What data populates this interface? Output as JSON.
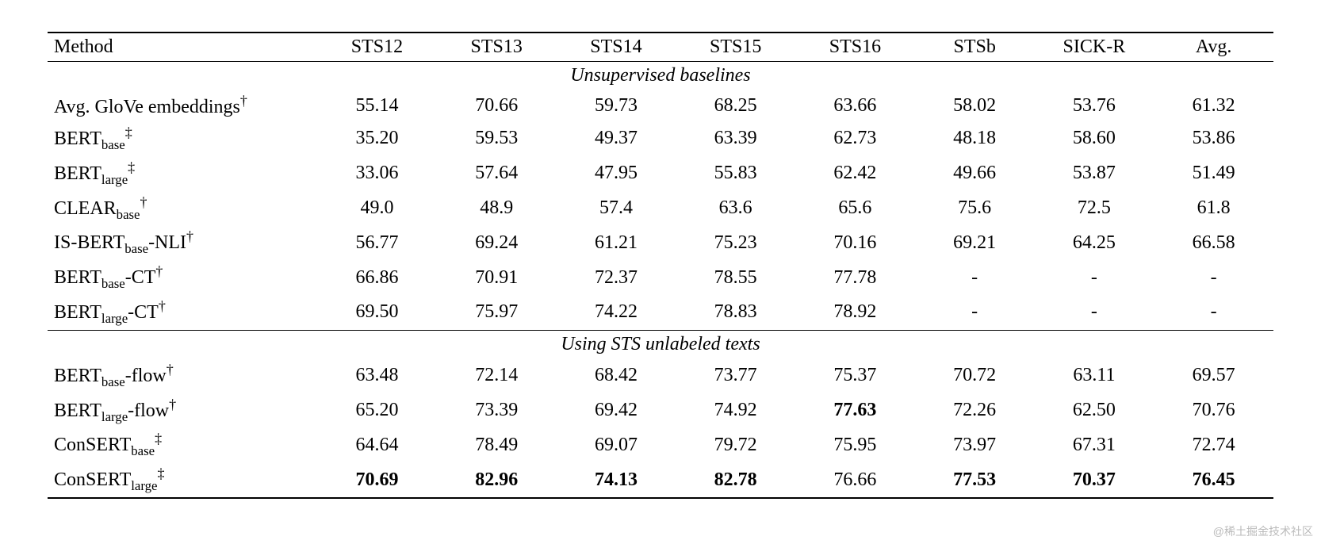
{
  "table": {
    "columns": [
      "Method",
      "STS12",
      "STS13",
      "STS14",
      "STS15",
      "STS16",
      "STSb",
      "SICK-R",
      "Avg."
    ],
    "col_widths_pct": [
      22,
      9.75,
      9.75,
      9.75,
      9.75,
      9.75,
      9.75,
      9.75,
      9.75
    ],
    "font_family": "Times New Roman",
    "font_size_pt": 24,
    "sections": [
      {
        "title": "Unsupervised baselines",
        "rows": [
          {
            "method_html": "Avg. GloVe embeddings<sup>†</sup>",
            "vals": [
              "55.14",
              "70.66",
              "59.73",
              "68.25",
              "63.66",
              "58.02",
              "53.76",
              "61.32"
            ],
            "bold": [
              0,
              0,
              0,
              0,
              0,
              0,
              0,
              0
            ]
          },
          {
            "method_html": "BERT<sub>base</sub><sup>‡</sup>",
            "vals": [
              "35.20",
              "59.53",
              "49.37",
              "63.39",
              "62.73",
              "48.18",
              "58.60",
              "53.86"
            ],
            "bold": [
              0,
              0,
              0,
              0,
              0,
              0,
              0,
              0
            ]
          },
          {
            "method_html": "BERT<sub>large</sub><sup>‡</sup>",
            "vals": [
              "33.06",
              "57.64",
              "47.95",
              "55.83",
              "62.42",
              "49.66",
              "53.87",
              "51.49"
            ],
            "bold": [
              0,
              0,
              0,
              0,
              0,
              0,
              0,
              0
            ]
          },
          {
            "method_html": "CLEAR<sub>base</sub><sup>†</sup>",
            "vals": [
              "49.0",
              "48.9",
              "57.4",
              "63.6",
              "65.6",
              "75.6",
              "72.5",
              "61.8"
            ],
            "bold": [
              0,
              0,
              0,
              0,
              0,
              0,
              0,
              0
            ]
          },
          {
            "method_html": "IS-BERT<sub>base</sub>-NLI<sup>†</sup>",
            "vals": [
              "56.77",
              "69.24",
              "61.21",
              "75.23",
              "70.16",
              "69.21",
              "64.25",
              "66.58"
            ],
            "bold": [
              0,
              0,
              0,
              0,
              0,
              0,
              0,
              0
            ]
          },
          {
            "method_html": "BERT<sub>base</sub>-CT<sup>†</sup>",
            "vals": [
              "66.86",
              "70.91",
              "72.37",
              "78.55",
              "77.78",
              "-",
              "-",
              "-"
            ],
            "bold": [
              0,
              0,
              0,
              0,
              0,
              0,
              0,
              0
            ]
          },
          {
            "method_html": "BERT<sub>large</sub>-CT<sup>†</sup>",
            "vals": [
              "69.50",
              "75.97",
              "74.22",
              "78.83",
              "78.92",
              "-",
              "-",
              "-"
            ],
            "bold": [
              0,
              0,
              0,
              0,
              0,
              0,
              0,
              0
            ]
          }
        ]
      },
      {
        "title": "Using STS unlabeled texts",
        "rows": [
          {
            "method_html": "BERT<sub>base</sub>-flow<sup>†</sup>",
            "vals": [
              "63.48",
              "72.14",
              "68.42",
              "73.77",
              "75.37",
              "70.72",
              "63.11",
              "69.57"
            ],
            "bold": [
              0,
              0,
              0,
              0,
              0,
              0,
              0,
              0
            ]
          },
          {
            "method_html": "BERT<sub>large</sub>-flow<sup>†</sup>",
            "vals": [
              "65.20",
              "73.39",
              "69.42",
              "74.92",
              "77.63",
              "72.26",
              "62.50",
              "70.76"
            ],
            "bold": [
              0,
              0,
              0,
              0,
              1,
              0,
              0,
              0
            ]
          },
          {
            "method_html": "ConSERT<sub>base</sub><sup>‡</sup>",
            "vals": [
              "64.64",
              "78.49",
              "69.07",
              "79.72",
              "75.95",
              "73.97",
              "67.31",
              "72.74"
            ],
            "bold": [
              0,
              0,
              0,
              0,
              0,
              0,
              0,
              0
            ]
          },
          {
            "method_html": "ConSERT<sub>large</sub><sup>‡</sup>",
            "vals": [
              "70.69",
              "82.96",
              "74.13",
              "82.78",
              "76.66",
              "77.53",
              "70.37",
              "76.45"
            ],
            "bold": [
              1,
              1,
              1,
              1,
              0,
              1,
              1,
              1
            ]
          }
        ]
      }
    ],
    "rule_color": "#000000",
    "background_color": "#ffffff"
  },
  "watermark": "@稀土掘金技术社区"
}
